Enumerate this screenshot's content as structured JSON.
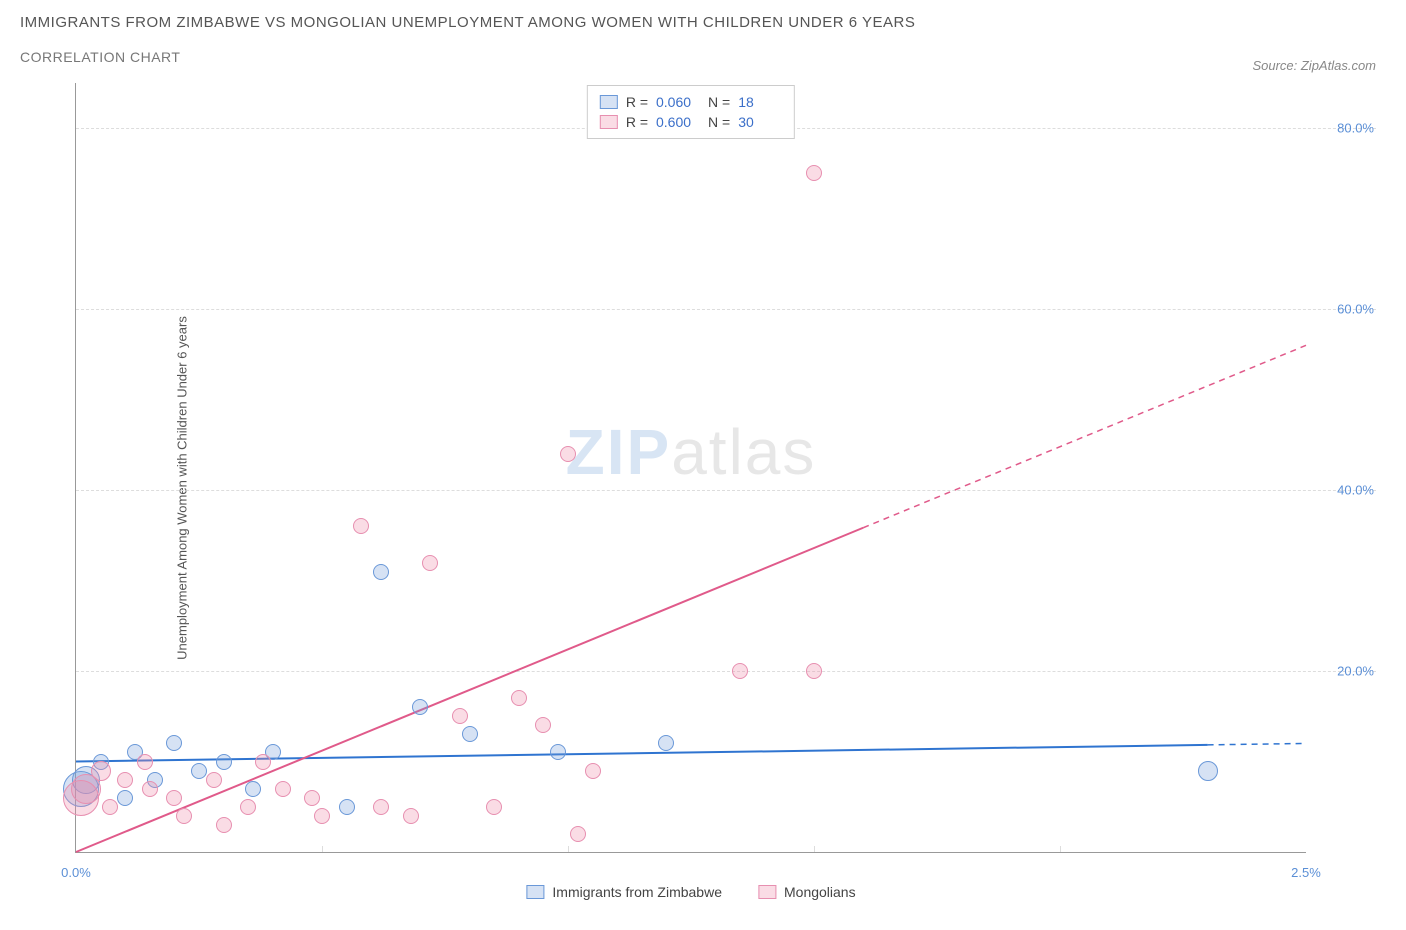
{
  "title": "IMMIGRANTS FROM ZIMBABWE VS MONGOLIAN UNEMPLOYMENT AMONG WOMEN WITH CHILDREN UNDER 6 YEARS",
  "subtitle": "CORRELATION CHART",
  "source": "Source: ZipAtlas.com",
  "ylabel": "Unemployment Among Women with Children Under 6 years",
  "watermark_a": "ZIP",
  "watermark_b": "atlas",
  "chart": {
    "type": "scatter",
    "xlim": [
      0.0,
      2.5
    ],
    "ylim": [
      0,
      85
    ],
    "xtick_labels": [
      "0.0%",
      "2.5%"
    ],
    "xtick_vals": [
      0.0,
      2.5
    ],
    "ytick_labels": [
      "20.0%",
      "40.0%",
      "60.0%",
      "80.0%"
    ],
    "ytick_vals": [
      20,
      40,
      60,
      80
    ],
    "x_minor_ticks": [
      0.5,
      1.0,
      1.5,
      2.0
    ],
    "background_color": "#ffffff",
    "grid_color": "#dddddd",
    "axis_color": "#999999",
    "label_color": "#5b8fd6"
  },
  "series": [
    {
      "name": "Immigrants from Zimbabwe",
      "fill": "rgba(120,160,220,0.30)",
      "stroke": "#6a98d8",
      "trend_color": "#2f74d0",
      "R": "0.060",
      "N": "18",
      "trend": {
        "x1": 0.0,
        "y1": 10.0,
        "x2": 2.5,
        "y2": 12.0,
        "x_solid_end": 2.3
      },
      "points": [
        {
          "x": 0.01,
          "y": 7,
          "r": 18
        },
        {
          "x": 0.02,
          "y": 8,
          "r": 14
        },
        {
          "x": 0.05,
          "y": 10,
          "r": 8
        },
        {
          "x": 0.1,
          "y": 6,
          "r": 8
        },
        {
          "x": 0.12,
          "y": 11,
          "r": 8
        },
        {
          "x": 0.16,
          "y": 8,
          "r": 8
        },
        {
          "x": 0.2,
          "y": 12,
          "r": 8
        },
        {
          "x": 0.25,
          "y": 9,
          "r": 8
        },
        {
          "x": 0.3,
          "y": 10,
          "r": 8
        },
        {
          "x": 0.36,
          "y": 7,
          "r": 8
        },
        {
          "x": 0.4,
          "y": 11,
          "r": 8
        },
        {
          "x": 0.55,
          "y": 5,
          "r": 8
        },
        {
          "x": 0.62,
          "y": 31,
          "r": 8
        },
        {
          "x": 0.7,
          "y": 16,
          "r": 8
        },
        {
          "x": 0.8,
          "y": 13,
          "r": 8
        },
        {
          "x": 0.98,
          "y": 11,
          "r": 8
        },
        {
          "x": 1.2,
          "y": 12,
          "r": 8
        },
        {
          "x": 2.3,
          "y": 9,
          "r": 10
        }
      ]
    },
    {
      "name": "Mongolians",
      "fill": "rgba(240,140,170,0.30)",
      "stroke": "#e78fb0",
      "trend_color": "#e05a8a",
      "R": "0.600",
      "N": "30",
      "trend": {
        "x1": 0.0,
        "y1": 0.0,
        "x2": 2.5,
        "y2": 56.0,
        "x_solid_end": 1.6
      },
      "points": [
        {
          "x": 0.01,
          "y": 6,
          "r": 18
        },
        {
          "x": 0.02,
          "y": 7,
          "r": 15
        },
        {
          "x": 0.05,
          "y": 9,
          "r": 10
        },
        {
          "x": 0.07,
          "y": 5,
          "r": 8
        },
        {
          "x": 0.1,
          "y": 8,
          "r": 8
        },
        {
          "x": 0.14,
          "y": 10,
          "r": 8
        },
        {
          "x": 0.15,
          "y": 7,
          "r": 8
        },
        {
          "x": 0.2,
          "y": 6,
          "r": 8
        },
        {
          "x": 0.22,
          "y": 4,
          "r": 8
        },
        {
          "x": 0.28,
          "y": 8,
          "r": 8
        },
        {
          "x": 0.3,
          "y": 3,
          "r": 8
        },
        {
          "x": 0.35,
          "y": 5,
          "r": 8
        },
        {
          "x": 0.38,
          "y": 10,
          "r": 8
        },
        {
          "x": 0.42,
          "y": 7,
          "r": 8
        },
        {
          "x": 0.48,
          "y": 6,
          "r": 8
        },
        {
          "x": 0.5,
          "y": 4,
          "r": 8
        },
        {
          "x": 0.58,
          "y": 36,
          "r": 8
        },
        {
          "x": 0.62,
          "y": 5,
          "r": 8
        },
        {
          "x": 0.68,
          "y": 4,
          "r": 8
        },
        {
          "x": 0.72,
          "y": 32,
          "r": 8
        },
        {
          "x": 0.78,
          "y": 15,
          "r": 8
        },
        {
          "x": 0.85,
          "y": 5,
          "r": 8
        },
        {
          "x": 0.9,
          "y": 17,
          "r": 8
        },
        {
          "x": 0.95,
          "y": 14,
          "r": 8
        },
        {
          "x": 1.0,
          "y": 44,
          "r": 8
        },
        {
          "x": 1.02,
          "y": 2,
          "r": 8
        },
        {
          "x": 1.05,
          "y": 9,
          "r": 8
        },
        {
          "x": 1.35,
          "y": 20,
          "r": 8
        },
        {
          "x": 1.5,
          "y": 75,
          "r": 8
        },
        {
          "x": 1.5,
          "y": 20,
          "r": 8
        }
      ]
    }
  ],
  "legend_top": {
    "r_label": "R =",
    "n_label": "N ="
  },
  "legend_bottom": [
    "Immigrants from Zimbabwe",
    "Mongolians"
  ]
}
